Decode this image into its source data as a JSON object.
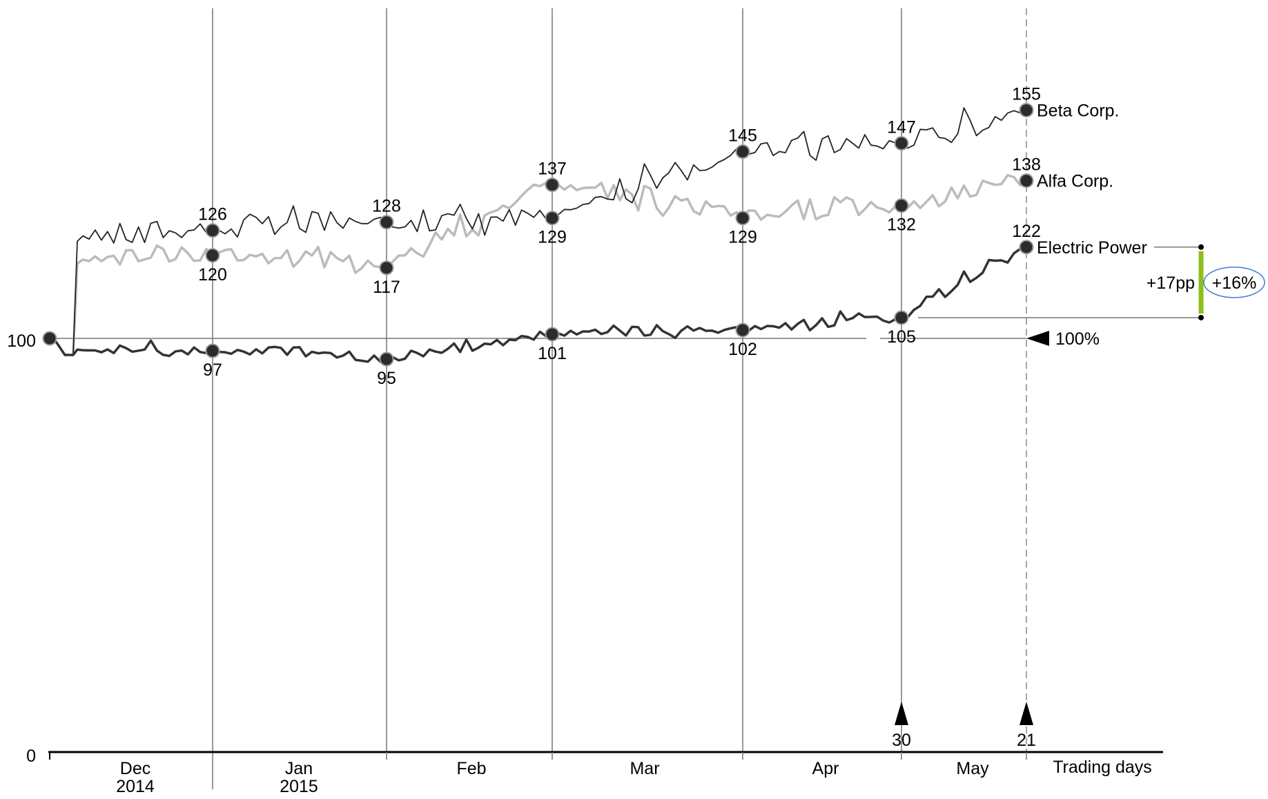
{
  "chart_data": {
    "type": "line",
    "title": "",
    "xlabel": "Trading days",
    "ylabel": "",
    "ylim": [
      0,
      160
    ],
    "y_ticks": [
      "0",
      "100"
    ],
    "grid": false,
    "months": [
      {
        "label": "Dec",
        "year": "2014"
      },
      {
        "label": "Jan",
        "year": "2015"
      },
      {
        "label": "Feb",
        "year": ""
      },
      {
        "label": "Mar",
        "year": ""
      },
      {
        "label": "Apr",
        "year": ""
      },
      {
        "label": "May",
        "year": ""
      }
    ],
    "checkpoints": [
      "start",
      "end Dec 2014",
      "end Jan 2015",
      "end Feb",
      "end Mar",
      "end Apr",
      "latest"
    ],
    "series": [
      {
        "name": "Beta Corp.",
        "color": "#222222",
        "width": 1.8,
        "values": [
          100,
          126,
          128,
          129,
          145,
          147,
          155
        ],
        "labels": [
          "",
          "126",
          "128",
          "129",
          "145",
          "147",
          "155"
        ]
      },
      {
        "name": "Alfa Corp.",
        "color": "#bbbbbb",
        "width": 3.5,
        "values": [
          100,
          120,
          117,
          137,
          129,
          132,
          138
        ],
        "labels": [
          "",
          "120",
          "117",
          "137",
          "129",
          "132",
          "138"
        ]
      },
      {
        "name": "Electric Power",
        "color": "#333333",
        "width": 3.5,
        "values": [
          100,
          97,
          95,
          101,
          102,
          105,
          122
        ],
        "labels": [
          "100",
          "97",
          "95",
          "101",
          "102",
          "105",
          "122"
        ]
      }
    ],
    "reference_line": {
      "value": 100,
      "label": "100%"
    },
    "day_markers": [
      {
        "label": "30"
      },
      {
        "label": "21"
      }
    ],
    "annotation": {
      "absolute": "+17pp",
      "relative": "+16%",
      "accent_color": "#8cbf1a",
      "ellipse_color": "#3b7dd8"
    }
  }
}
